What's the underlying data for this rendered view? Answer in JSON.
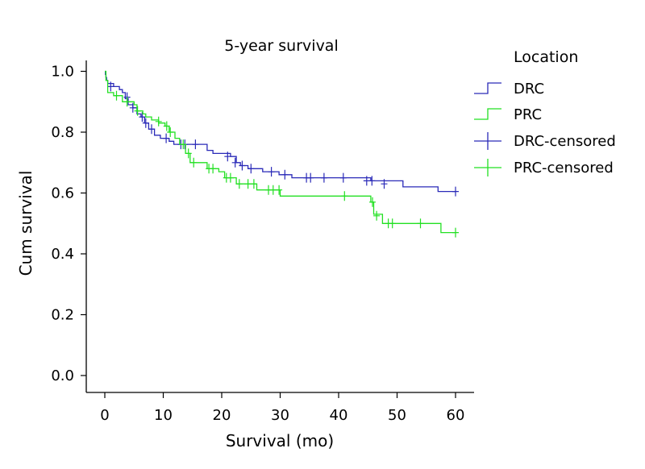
{
  "chart_data": {
    "type": "line",
    "subtype": "kaplan-meier step",
    "title": "5-year survival",
    "xlabel": "Survival (mo)",
    "ylabel": "Cum survival",
    "xlim": [
      -3,
      63
    ],
    "ylim": [
      -0.05,
      1.05
    ],
    "xticks": [
      "0",
      "10",
      "20",
      "30",
      "40",
      "50",
      "60"
    ],
    "yticks": [
      "0.0",
      "0.2",
      "0.4",
      "0.6",
      "0.8",
      "1.0"
    ],
    "grid": false,
    "legend": {
      "title": "Location",
      "placement": "top-right",
      "entries": [
        "DRC",
        "PRC",
        "DRC-censored",
        "PRC-censored"
      ]
    },
    "series": [
      {
        "name": "DRC",
        "color": "#2a2ab8",
        "steps": [
          [
            0,
            1.0
          ],
          [
            0.1,
            0.99
          ],
          [
            0.2,
            0.98
          ],
          [
            0.3,
            0.97
          ],
          [
            0.5,
            0.96
          ],
          [
            1.5,
            0.95
          ],
          [
            2.5,
            0.94
          ],
          [
            3.0,
            0.93
          ],
          [
            3.5,
            0.91
          ],
          [
            4.0,
            0.89
          ],
          [
            4.8,
            0.88
          ],
          [
            5.5,
            0.86
          ],
          [
            6.2,
            0.85
          ],
          [
            6.8,
            0.83
          ],
          [
            7.5,
            0.81
          ],
          [
            8.5,
            0.79
          ],
          [
            9.5,
            0.78
          ],
          [
            11.0,
            0.77
          ],
          [
            11.8,
            0.76
          ],
          [
            17.5,
            0.74
          ],
          [
            18.5,
            0.73
          ],
          [
            21.5,
            0.72
          ],
          [
            22.5,
            0.7
          ],
          [
            23.2,
            0.69
          ],
          [
            24.5,
            0.68
          ],
          [
            27.0,
            0.67
          ],
          [
            29.8,
            0.66
          ],
          [
            32.0,
            0.65
          ],
          [
            45.5,
            0.64
          ],
          [
            51.0,
            0.62
          ],
          [
            57.0,
            0.605
          ],
          [
            60.0,
            0.605
          ]
        ],
        "censored": [
          [
            1.0,
            0.95
          ],
          [
            3.8,
            0.915
          ],
          [
            4.8,
            0.88
          ],
          [
            6.4,
            0.85
          ],
          [
            7.0,
            0.83
          ],
          [
            8.0,
            0.81
          ],
          [
            10.5,
            0.78
          ],
          [
            13.0,
            0.76
          ],
          [
            13.7,
            0.76
          ],
          [
            15.5,
            0.76
          ],
          [
            21.0,
            0.72
          ],
          [
            22.3,
            0.7
          ],
          [
            23.5,
            0.69
          ],
          [
            25.0,
            0.68
          ],
          [
            28.5,
            0.67
          ],
          [
            30.8,
            0.66
          ],
          [
            34.5,
            0.65
          ],
          [
            35.2,
            0.65
          ],
          [
            37.5,
            0.65
          ],
          [
            40.8,
            0.65
          ],
          [
            44.8,
            0.64
          ],
          [
            45.7,
            0.64
          ],
          [
            47.8,
            0.63
          ],
          [
            60.0,
            0.605
          ]
        ]
      },
      {
        "name": "PRC",
        "color": "#22e022",
        "steps": [
          [
            0,
            1.0
          ],
          [
            0.2,
            0.97
          ],
          [
            0.5,
            0.93
          ],
          [
            1.5,
            0.92
          ],
          [
            3.0,
            0.9
          ],
          [
            5.0,
            0.89
          ],
          [
            5.5,
            0.87
          ],
          [
            6.5,
            0.86
          ],
          [
            7.0,
            0.85
          ],
          [
            8.0,
            0.84
          ],
          [
            9.2,
            0.83
          ],
          [
            10.3,
            0.82
          ],
          [
            11.0,
            0.8
          ],
          [
            12.0,
            0.78
          ],
          [
            12.8,
            0.76
          ],
          [
            13.8,
            0.73
          ],
          [
            14.6,
            0.7
          ],
          [
            17.5,
            0.68
          ],
          [
            19.5,
            0.67
          ],
          [
            20.5,
            0.65
          ],
          [
            22.5,
            0.63
          ],
          [
            26.0,
            0.61
          ],
          [
            30.0,
            0.59
          ],
          [
            45.5,
            0.57
          ],
          [
            46.0,
            0.53
          ],
          [
            47.5,
            0.5
          ],
          [
            57.5,
            0.47
          ],
          [
            60.0,
            0.47
          ]
        ],
        "censored": [
          [
            2.0,
            0.92
          ],
          [
            3.8,
            0.9
          ],
          [
            5.6,
            0.87
          ],
          [
            9.2,
            0.835
          ],
          [
            10.6,
            0.82
          ],
          [
            11.2,
            0.8
          ],
          [
            13.4,
            0.76
          ],
          [
            14.3,
            0.73
          ],
          [
            15.2,
            0.7
          ],
          [
            17.8,
            0.68
          ],
          [
            18.5,
            0.68
          ],
          [
            20.8,
            0.65
          ],
          [
            21.5,
            0.65
          ],
          [
            23.0,
            0.63
          ],
          [
            24.5,
            0.63
          ],
          [
            25.5,
            0.63
          ],
          [
            28.0,
            0.61
          ],
          [
            28.8,
            0.61
          ],
          [
            29.8,
            0.61
          ],
          [
            41.0,
            0.59
          ],
          [
            45.8,
            0.57
          ],
          [
            46.5,
            0.525
          ],
          [
            48.5,
            0.5
          ],
          [
            49.2,
            0.5
          ],
          [
            54.0,
            0.5
          ],
          [
            60.0,
            0.47
          ]
        ]
      }
    ]
  }
}
